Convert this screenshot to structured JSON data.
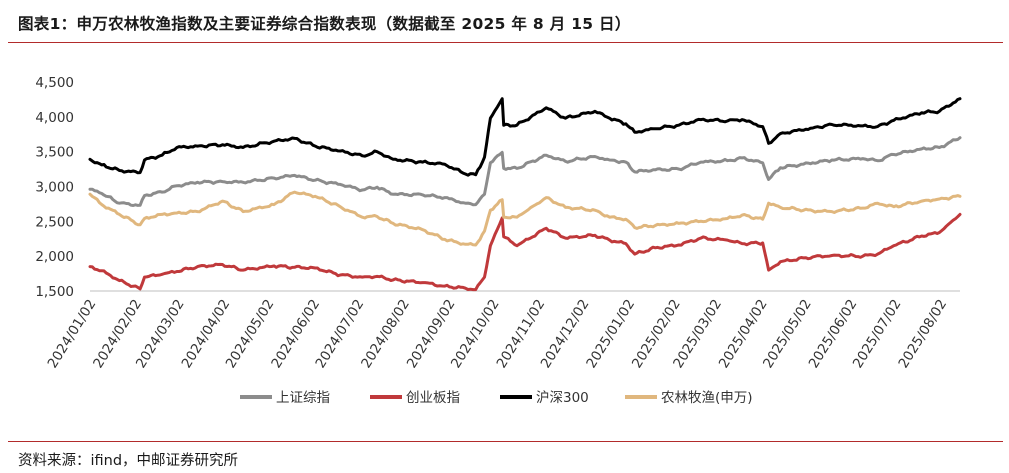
{
  "header": {
    "title": "图表1：申万农林牧渔指数及主要证券综合指数表现（数据截至 2025 年 8 月 15 日）"
  },
  "footer": {
    "source": "资料来源：ifind，中邮证券研究所"
  },
  "colors": {
    "rule": "#b22b2b",
    "szzs": "#8c8c8c",
    "cybz": "#c0393b",
    "hs300": "#000000",
    "nlmy": "#e0b77e"
  },
  "chart_data": {
    "type": "line",
    "title": "",
    "xlabel": "",
    "ylabel": "",
    "ylim": [
      1500,
      4500
    ],
    "yticks": [
      1500,
      2000,
      2500,
      3000,
      3500,
      4000,
      4500
    ],
    "ytick_labels": [
      "1,500",
      "2,000",
      "2,500",
      "3,000",
      "3,500",
      "4,000",
      "4,500"
    ],
    "x_start": "2024/01/02",
    "x_end": "2025/08/15",
    "xticks": [
      "2024/01/02",
      "2024/02/02",
      "2024/03/02",
      "2024/04/02",
      "2024/05/02",
      "2024/06/02",
      "2024/07/02",
      "2024/08/02",
      "2024/09/02",
      "2024/10/02",
      "2024/11/02",
      "2024/12/02",
      "2025/01/02",
      "2025/02/02",
      "2025/03/02",
      "2025/04/02",
      "2025/05/02",
      "2025/06/02",
      "2025/07/02",
      "2025/08/02"
    ],
    "grid": false,
    "legend_position": "bottom",
    "series": [
      {
        "name": "上证综指",
        "color_key": "szzs",
        "points": [
          [
            "2024/01/02",
            2960
          ],
          [
            "2024/01/10",
            2900
          ],
          [
            "2024/01/22",
            2760
          ],
          [
            "2024/02/05",
            2730
          ],
          [
            "2024/02/08",
            2870
          ],
          [
            "2024/02/20",
            2920
          ],
          [
            "2024/03/01",
            3010
          ],
          [
            "2024/03/15",
            3060
          ],
          [
            "2024/04/01",
            3070
          ],
          [
            "2024/04/15",
            3060
          ],
          [
            "2024/05/06",
            3120
          ],
          [
            "2024/05/20",
            3160
          ],
          [
            "2024/06/03",
            3090
          ],
          [
            "2024/06/20",
            3030
          ],
          [
            "2024/07/05",
            2950
          ],
          [
            "2024/07/15",
            2990
          ],
          [
            "2024/07/26",
            2890
          ],
          [
            "2024/08/15",
            2880
          ],
          [
            "2024/08/30",
            2840
          ],
          [
            "2024/09/13",
            2760
          ],
          [
            "2024/09/20",
            2740
          ],
          [
            "2024/09/26",
            2890
          ],
          [
            "2024/09/30",
            3340
          ],
          [
            "2024/10/08",
            3490
          ],
          [
            "2024/10/09",
            3260
          ],
          [
            "2024/10/18",
            3260
          ],
          [
            "2024/11/07",
            3450
          ],
          [
            "2024/11/20",
            3360
          ],
          [
            "2024/12/10",
            3430
          ],
          [
            "2024/12/20",
            3380
          ],
          [
            "2024/12/31",
            3350
          ],
          [
            "2025/01/06",
            3210
          ],
          [
            "2025/01/20",
            3240
          ],
          [
            "2025/02/05",
            3250
          ],
          [
            "2025/02/20",
            3350
          ],
          [
            "2025/03/10",
            3370
          ],
          [
            "2025/03/20",
            3410
          ],
          [
            "2025/04/03",
            3340
          ],
          [
            "2025/04/07",
            3100
          ],
          [
            "2025/04/15",
            3270
          ],
          [
            "2025/05/07",
            3340
          ],
          [
            "2025/05/20",
            3380
          ],
          [
            "2025/06/10",
            3400
          ],
          [
            "2025/06/20",
            3370
          ],
          [
            "2025/07/01",
            3460
          ],
          [
            "2025/07/20",
            3540
          ],
          [
            "2025/08/01",
            3560
          ],
          [
            "2025/08/15",
            3700
          ]
        ]
      },
      {
        "name": "创业板指",
        "color_key": "cybz",
        "points": [
          [
            "2024/01/02",
            1850
          ],
          [
            "2024/01/10",
            1790
          ],
          [
            "2024/01/22",
            1650
          ],
          [
            "2024/02/05",
            1530
          ],
          [
            "2024/02/08",
            1700
          ],
          [
            "2024/02/20",
            1740
          ],
          [
            "2024/03/01",
            1780
          ],
          [
            "2024/03/15",
            1850
          ],
          [
            "2024/04/01",
            1880
          ],
          [
            "2024/04/15",
            1800
          ],
          [
            "2024/05/06",
            1860
          ],
          [
            "2024/05/20",
            1840
          ],
          [
            "2024/06/03",
            1830
          ],
          [
            "2024/06/20",
            1730
          ],
          [
            "2024/07/05",
            1700
          ],
          [
            "2024/07/15",
            1710
          ],
          [
            "2024/07/26",
            1660
          ],
          [
            "2024/08/15",
            1620
          ],
          [
            "2024/08/30",
            1570
          ],
          [
            "2024/09/13",
            1540
          ],
          [
            "2024/09/20",
            1520
          ],
          [
            "2024/09/26",
            1700
          ],
          [
            "2024/09/30",
            2150
          ],
          [
            "2024/10/08",
            2550
          ],
          [
            "2024/10/09",
            2280
          ],
          [
            "2024/10/18",
            2150
          ],
          [
            "2024/11/07",
            2400
          ],
          [
            "2024/11/20",
            2260
          ],
          [
            "2024/12/10",
            2300
          ],
          [
            "2024/12/20",
            2230
          ],
          [
            "2024/12/31",
            2180
          ],
          [
            "2025/01/06",
            2030
          ],
          [
            "2025/01/20",
            2120
          ],
          [
            "2025/02/05",
            2160
          ],
          [
            "2025/02/20",
            2260
          ],
          [
            "2025/03/10",
            2230
          ],
          [
            "2025/03/20",
            2180
          ],
          [
            "2025/04/03",
            2190
          ],
          [
            "2025/04/07",
            1800
          ],
          [
            "2025/04/15",
            1920
          ],
          [
            "2025/05/07",
            1990
          ],
          [
            "2025/05/20",
            2010
          ],
          [
            "2025/06/10",
            2000
          ],
          [
            "2025/06/20",
            2030
          ],
          [
            "2025/07/01",
            2150
          ],
          [
            "2025/07/20",
            2290
          ],
          [
            "2025/08/01",
            2340
          ],
          [
            "2025/08/15",
            2600
          ]
        ]
      },
      {
        "name": "沪深300",
        "color_key": "hs300",
        "points": [
          [
            "2024/01/02",
            3390
          ],
          [
            "2024/01/10",
            3310
          ],
          [
            "2024/01/22",
            3230
          ],
          [
            "2024/02/05",
            3200
          ],
          [
            "2024/02/08",
            3380
          ],
          [
            "2024/02/20",
            3450
          ],
          [
            "2024/03/01",
            3560
          ],
          [
            "2024/03/15",
            3580
          ],
          [
            "2024/04/01",
            3600
          ],
          [
            "2024/04/15",
            3560
          ],
          [
            "2024/05/06",
            3650
          ],
          [
            "2024/05/20",
            3690
          ],
          [
            "2024/06/03",
            3580
          ],
          [
            "2024/06/20",
            3510
          ],
          [
            "2024/07/05",
            3440
          ],
          [
            "2024/07/15",
            3500
          ],
          [
            "2024/07/26",
            3390
          ],
          [
            "2024/08/15",
            3350
          ],
          [
            "2024/08/30",
            3320
          ],
          [
            "2024/09/13",
            3180
          ],
          [
            "2024/09/20",
            3170
          ],
          [
            "2024/09/26",
            3420
          ],
          [
            "2024/09/30",
            3980
          ],
          [
            "2024/10/08",
            4260
          ],
          [
            "2024/10/09",
            3880
          ],
          [
            "2024/10/18",
            3880
          ],
          [
            "2024/11/07",
            4130
          ],
          [
            "2024/11/20",
            3980
          ],
          [
            "2024/12/10",
            4080
          ],
          [
            "2024/12/20",
            3980
          ],
          [
            "2024/12/31",
            3900
          ],
          [
            "2025/01/06",
            3780
          ],
          [
            "2025/01/20",
            3830
          ],
          [
            "2025/02/05",
            3880
          ],
          [
            "2025/02/20",
            3960
          ],
          [
            "2025/03/10",
            3940
          ],
          [
            "2025/03/20",
            3960
          ],
          [
            "2025/04/03",
            3860
          ],
          [
            "2025/04/07",
            3620
          ],
          [
            "2025/04/15",
            3760
          ],
          [
            "2025/05/07",
            3840
          ],
          [
            "2025/05/20",
            3890
          ],
          [
            "2025/06/10",
            3870
          ],
          [
            "2025/06/20",
            3860
          ],
          [
            "2025/07/01",
            3950
          ],
          [
            "2025/07/20",
            4060
          ],
          [
            "2025/08/01",
            4080
          ],
          [
            "2025/08/15",
            4260
          ]
        ]
      },
      {
        "name": "农林牧渔(申万)",
        "color_key": "nlmy",
        "points": [
          [
            "2024/01/02",
            2890
          ],
          [
            "2024/01/10",
            2740
          ],
          [
            "2024/01/22",
            2600
          ],
          [
            "2024/02/05",
            2450
          ],
          [
            "2024/02/08",
            2540
          ],
          [
            "2024/02/20",
            2600
          ],
          [
            "2024/03/01",
            2620
          ],
          [
            "2024/03/15",
            2640
          ],
          [
            "2024/04/01",
            2790
          ],
          [
            "2024/04/15",
            2640
          ],
          [
            "2024/05/06",
            2740
          ],
          [
            "2024/05/20",
            2920
          ],
          [
            "2024/06/03",
            2860
          ],
          [
            "2024/06/20",
            2710
          ],
          [
            "2024/07/05",
            2560
          ],
          [
            "2024/07/15",
            2570
          ],
          [
            "2024/07/26",
            2470
          ],
          [
            "2024/08/15",
            2380
          ],
          [
            "2024/08/30",
            2240
          ],
          [
            "2024/09/13",
            2170
          ],
          [
            "2024/09/20",
            2160
          ],
          [
            "2024/09/26",
            2360
          ],
          [
            "2024/09/30",
            2660
          ],
          [
            "2024/10/08",
            2810
          ],
          [
            "2024/10/09",
            2560
          ],
          [
            "2024/10/18",
            2560
          ],
          [
            "2024/11/07",
            2840
          ],
          [
            "2024/11/20",
            2700
          ],
          [
            "2024/12/10",
            2660
          ],
          [
            "2024/12/20",
            2560
          ],
          [
            "2024/12/31",
            2530
          ],
          [
            "2025/01/06",
            2410
          ],
          [
            "2025/01/20",
            2440
          ],
          [
            "2025/02/05",
            2470
          ],
          [
            "2025/02/20",
            2500
          ],
          [
            "2025/03/10",
            2540
          ],
          [
            "2025/03/20",
            2590
          ],
          [
            "2025/04/03",
            2530
          ],
          [
            "2025/04/07",
            2760
          ],
          [
            "2025/04/15",
            2700
          ],
          [
            "2025/05/07",
            2650
          ],
          [
            "2025/05/20",
            2640
          ],
          [
            "2025/06/10",
            2690
          ],
          [
            "2025/06/20",
            2760
          ],
          [
            "2025/07/01",
            2710
          ],
          [
            "2025/07/20",
            2790
          ],
          [
            "2025/08/01",
            2820
          ],
          [
            "2025/08/15",
            2860
          ]
        ]
      }
    ]
  }
}
